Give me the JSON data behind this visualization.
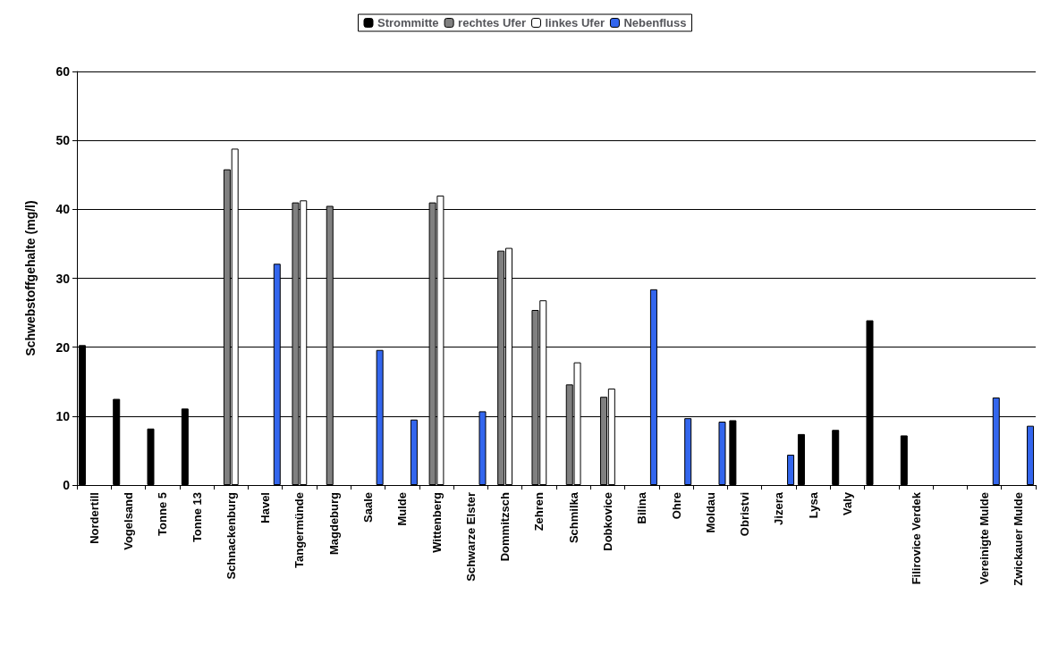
{
  "chart_data": {
    "type": "bar",
    "ylabel": "Schwebstoffgehalte (mg/l)",
    "categories": [
      "Nordertill",
      "Vogelsand",
      "Tonne 5",
      "Tonne 13",
      "Schnackenburg",
      "Havel",
      "Tangermünde",
      "Magdeburg",
      "Saale",
      "Mulde",
      "Wittenberg",
      "Schwarze Elster",
      "Dommitzsch",
      "Zehren",
      "Schmilka",
      "Dobkovice",
      "Bilina",
      "Ohre",
      "Moldau",
      "Obristvi",
      "Jizera",
      "Lysa",
      "Valy",
      null,
      "Filirovice Verdek",
      null,
      "Vereinigte Mulde",
      "Zwickauer Mulde"
    ],
    "series": [
      {
        "name": "Strommitte",
        "color": "#000000",
        "values": [
          20.3,
          12.5,
          8.2,
          11.1,
          null,
          null,
          null,
          null,
          null,
          null,
          null,
          null,
          null,
          null,
          null,
          null,
          null,
          null,
          null,
          9.4,
          null,
          7.4,
          8.0,
          23.9,
          7.2,
          null,
          null,
          null
        ]
      },
      {
        "name": "rechtes Ufer",
        "color": "#808080",
        "values": [
          null,
          null,
          null,
          null,
          45.8,
          null,
          41.0,
          40.5,
          null,
          null,
          41.0,
          null,
          34.0,
          25.4,
          14.6,
          12.8,
          null,
          null,
          null,
          null,
          null,
          null,
          null,
          null,
          null,
          null,
          null,
          null
        ]
      },
      {
        "name": "linkes Ufer",
        "color": "#ffffff",
        "values": [
          null,
          null,
          null,
          null,
          48.8,
          null,
          41.3,
          null,
          null,
          null,
          42.0,
          null,
          34.4,
          26.8,
          17.8,
          14.0,
          null,
          null,
          null,
          null,
          null,
          null,
          null,
          null,
          null,
          null,
          null,
          null
        ]
      },
      {
        "name": "Nebenfluss",
        "color": "#3366ee",
        "values": [
          null,
          null,
          null,
          null,
          null,
          32.1,
          null,
          null,
          19.6,
          9.5,
          null,
          10.7,
          null,
          null,
          null,
          null,
          28.4,
          9.7,
          9.2,
          null,
          4.4,
          null,
          null,
          null,
          null,
          null,
          12.7,
          8.6
        ]
      }
    ],
    "ylim": [
      0,
      60
    ],
    "yticks": [
      0,
      10,
      20,
      30,
      40,
      50,
      60
    ],
    "grid": "y",
    "legend": "top"
  }
}
